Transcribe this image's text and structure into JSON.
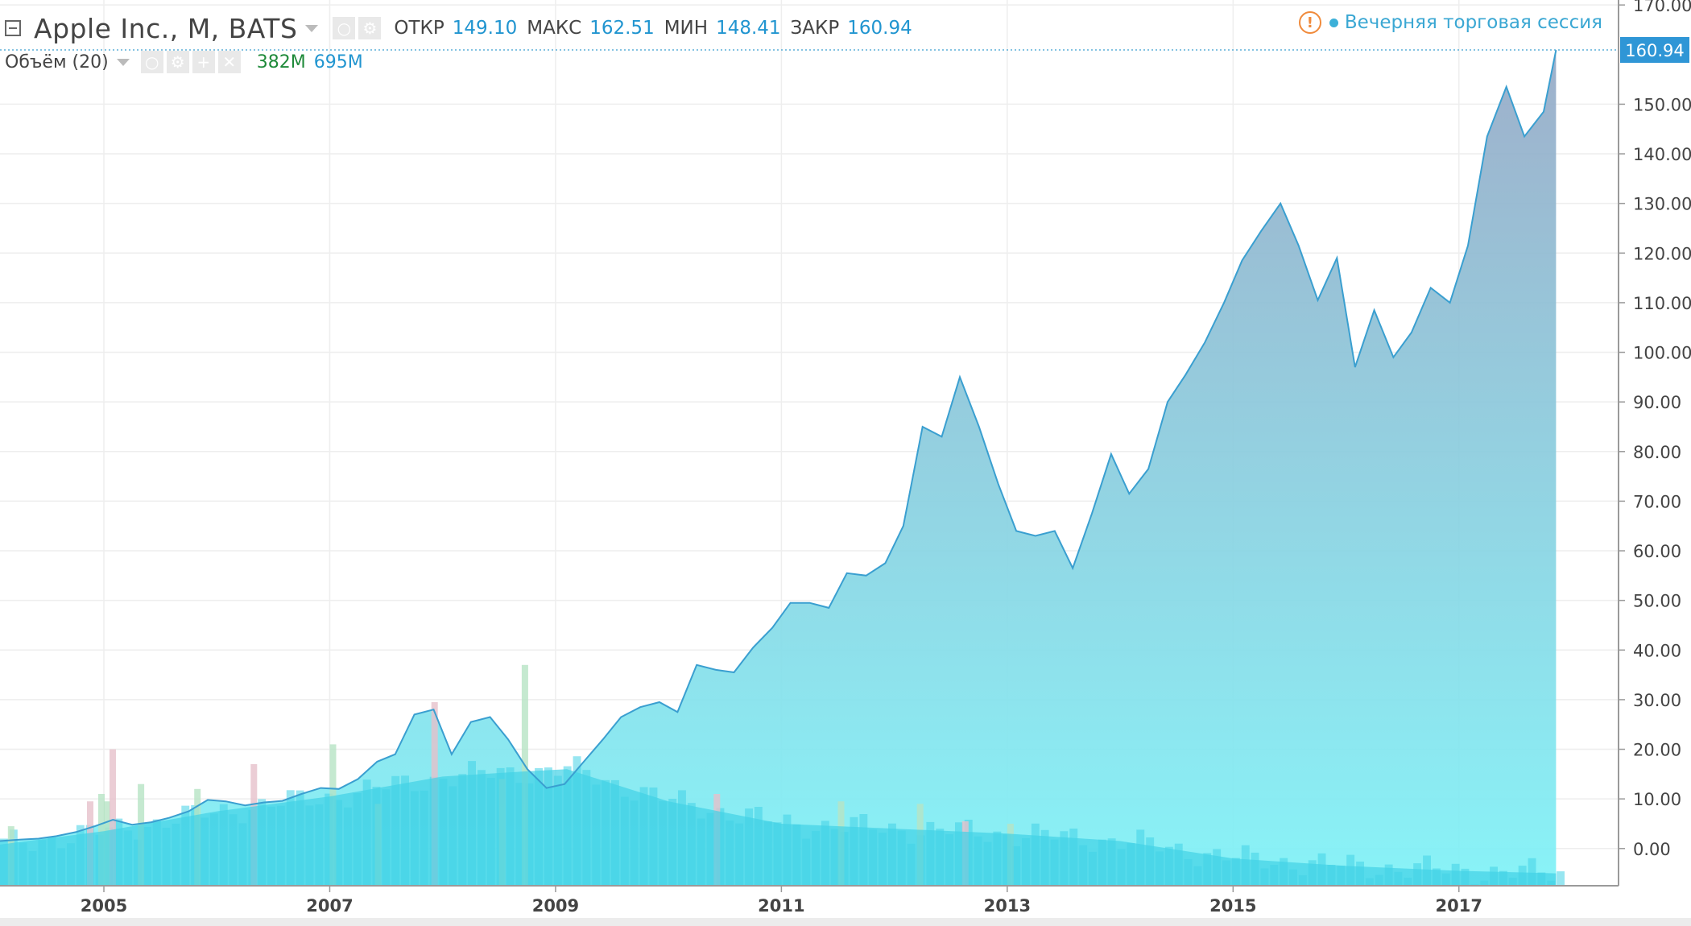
{
  "legend": {
    "symbol_title": "Apple Inc., M, BATS",
    "open_label": "ОТКР",
    "open_value": "149.10",
    "high_label": "МАКС",
    "high_value": "162.51",
    "low_label": "МИН",
    "low_value": "148.41",
    "close_label": "ЗАКР",
    "close_value": "160.94"
  },
  "volume_legend": {
    "title": "Объём (20)",
    "value_a": "382M",
    "value_b": "695M"
  },
  "session": {
    "warn_glyph": "!",
    "text": "Вечерняя торговая сессия"
  },
  "colors": {
    "price_line": "#3a9fd0",
    "price_fill_top": "#96a9c6",
    "price_fill_bottom": "#7ef2f7",
    "volume_ma_fill": "#42d2e6",
    "volume_up": "#b6e3c4",
    "volume_down": "#e6c0cb",
    "last_price_label_bg": "#2f96d6",
    "last_price_label_text": "#ffffff",
    "grid": "#eeeeee",
    "axis": "#9a9a9a"
  },
  "chart_data": {
    "type": "area",
    "x_tick_labels": [
      "2005",
      "2007",
      "2009",
      "2011",
      "2013",
      "2015",
      "2017"
    ],
    "x_ticks": [
      2005.0,
      2007.0,
      2009.0,
      2011.0,
      2013.0,
      2015.0,
      2017.0
    ],
    "y_tick_labels": [
      "0.00",
      "10.00",
      "20.00",
      "30.00",
      "40.00",
      "50.00",
      "60.00",
      "70.00",
      "80.00",
      "90.00",
      "100.00",
      "110.00",
      "120.00",
      "130.00",
      "140.00",
      "150.00",
      "170.00"
    ],
    "y_ticks": [
      0,
      10,
      20,
      30,
      40,
      50,
      60,
      70,
      80,
      90,
      100,
      110,
      120,
      130,
      140,
      150,
      170
    ],
    "ylim": [
      -7.5,
      171
    ],
    "xlim": [
      2004.08,
      2017.95
    ],
    "last_price_label": "160.94",
    "last_price": 160.94,
    "grid": true,
    "price_series": {
      "name": "",
      "points": [
        [
          2004.08,
          1.5
        ],
        [
          2004.25,
          1.8
        ],
        [
          2004.42,
          2.0
        ],
        [
          2004.58,
          2.5
        ],
        [
          2004.75,
          3.3
        ],
        [
          2004.92,
          4.5
        ],
        [
          2005.08,
          5.8
        ],
        [
          2005.25,
          4.8
        ],
        [
          2005.42,
          5.3
        ],
        [
          2005.58,
          6.2
        ],
        [
          2005.75,
          7.5
        ],
        [
          2005.92,
          9.8
        ],
        [
          2006.08,
          9.5
        ],
        [
          2006.25,
          8.7
        ],
        [
          2006.42,
          9.3
        ],
        [
          2006.58,
          9.6
        ],
        [
          2006.75,
          11.0
        ],
        [
          2006.92,
          12.2
        ],
        [
          2007.08,
          12.0
        ],
        [
          2007.25,
          14.0
        ],
        [
          2007.42,
          17.5
        ],
        [
          2007.58,
          19.0
        ],
        [
          2007.75,
          27.0
        ],
        [
          2007.92,
          28.0
        ],
        [
          2008.08,
          19.0
        ],
        [
          2008.25,
          25.5
        ],
        [
          2008.42,
          26.5
        ],
        [
          2008.58,
          22.0
        ],
        [
          2008.75,
          16.0
        ],
        [
          2008.92,
          12.2
        ],
        [
          2009.08,
          13.0
        ],
        [
          2009.25,
          17.5
        ],
        [
          2009.42,
          22.0
        ],
        [
          2009.58,
          26.5
        ],
        [
          2009.75,
          28.5
        ],
        [
          2009.92,
          29.5
        ],
        [
          2010.08,
          27.5
        ],
        [
          2010.25,
          37.0
        ],
        [
          2010.42,
          36.0
        ],
        [
          2010.58,
          35.5
        ],
        [
          2010.75,
          40.5
        ],
        [
          2010.92,
          44.5
        ],
        [
          2011.08,
          49.5
        ],
        [
          2011.25,
          49.5
        ],
        [
          2011.42,
          48.5
        ],
        [
          2011.58,
          55.5
        ],
        [
          2011.75,
          55.0
        ],
        [
          2011.92,
          57.5
        ],
        [
          2012.08,
          65.0
        ],
        [
          2012.25,
          85.0
        ],
        [
          2012.42,
          83.0
        ],
        [
          2012.58,
          95.0
        ],
        [
          2012.75,
          85.0
        ],
        [
          2012.92,
          73.5
        ],
        [
          2013.08,
          64.0
        ],
        [
          2013.25,
          63.0
        ],
        [
          2013.42,
          64.0
        ],
        [
          2013.58,
          56.5
        ],
        [
          2013.75,
          67.5
        ],
        [
          2013.92,
          79.5
        ],
        [
          2014.08,
          71.5
        ],
        [
          2014.25,
          76.5
        ],
        [
          2014.42,
          90.0
        ],
        [
          2014.58,
          95.5
        ],
        [
          2014.75,
          102.0
        ],
        [
          2014.92,
          110.0
        ],
        [
          2015.08,
          118.5
        ],
        [
          2015.25,
          124.5
        ],
        [
          2015.42,
          130.0
        ],
        [
          2015.58,
          121.5
        ],
        [
          2015.75,
          110.5
        ],
        [
          2015.92,
          119.0
        ],
        [
          2016.08,
          97.0
        ],
        [
          2016.25,
          108.5
        ],
        [
          2016.42,
          99.0
        ],
        [
          2016.58,
          104.0
        ],
        [
          2016.75,
          113.0
        ],
        [
          2016.92,
          110.0
        ],
        [
          2017.08,
          121.5
        ],
        [
          2017.25,
          143.5
        ],
        [
          2017.42,
          153.5
        ],
        [
          2017.58,
          143.5
        ],
        [
          2017.75,
          148.5
        ],
        [
          2017.86,
          160.9
        ]
      ]
    },
    "volume_series": {
      "name": "",
      "months": 164,
      "ma_points": [
        [
          2004.08,
          0.8
        ],
        [
          2005.0,
          3.5
        ],
        [
          2006.0,
          7.5
        ],
        [
          2007.0,
          10.5
        ],
        [
          2008.0,
          14.5
        ],
        [
          2008.7,
          15.5
        ],
        [
          2009.1,
          16.0
        ],
        [
          2010.0,
          9.5
        ],
        [
          2011.0,
          5.0
        ],
        [
          2012.0,
          4.0
        ],
        [
          2013.0,
          3.0
        ],
        [
          2014.0,
          1.5
        ],
        [
          2015.0,
          -2.0
        ],
        [
          2016.0,
          -3.5
        ],
        [
          2017.0,
          -4.5
        ],
        [
          2017.86,
          -5.0
        ]
      ],
      "spikes": [
        [
          2004.15,
          4.5
        ],
        [
          2004.85,
          9.5
        ],
        [
          2004.95,
          11.0
        ],
        [
          2005.0,
          9.5
        ],
        [
          2005.05,
          20.0
        ],
        [
          2005.3,
          13.0
        ],
        [
          2005.8,
          12.0
        ],
        [
          2006.3,
          17.0
        ],
        [
          2007.0,
          21.0
        ],
        [
          2007.4,
          9.0
        ],
        [
          2007.9,
          29.5
        ],
        [
          2008.5,
          14.0
        ],
        [
          2008.7,
          37.0
        ],
        [
          2010.4,
          11.0
        ],
        [
          2011.5,
          9.5
        ],
        [
          2012.2,
          9.0
        ],
        [
          2012.6,
          5.5
        ],
        [
          2013.0,
          5.0
        ]
      ]
    }
  }
}
